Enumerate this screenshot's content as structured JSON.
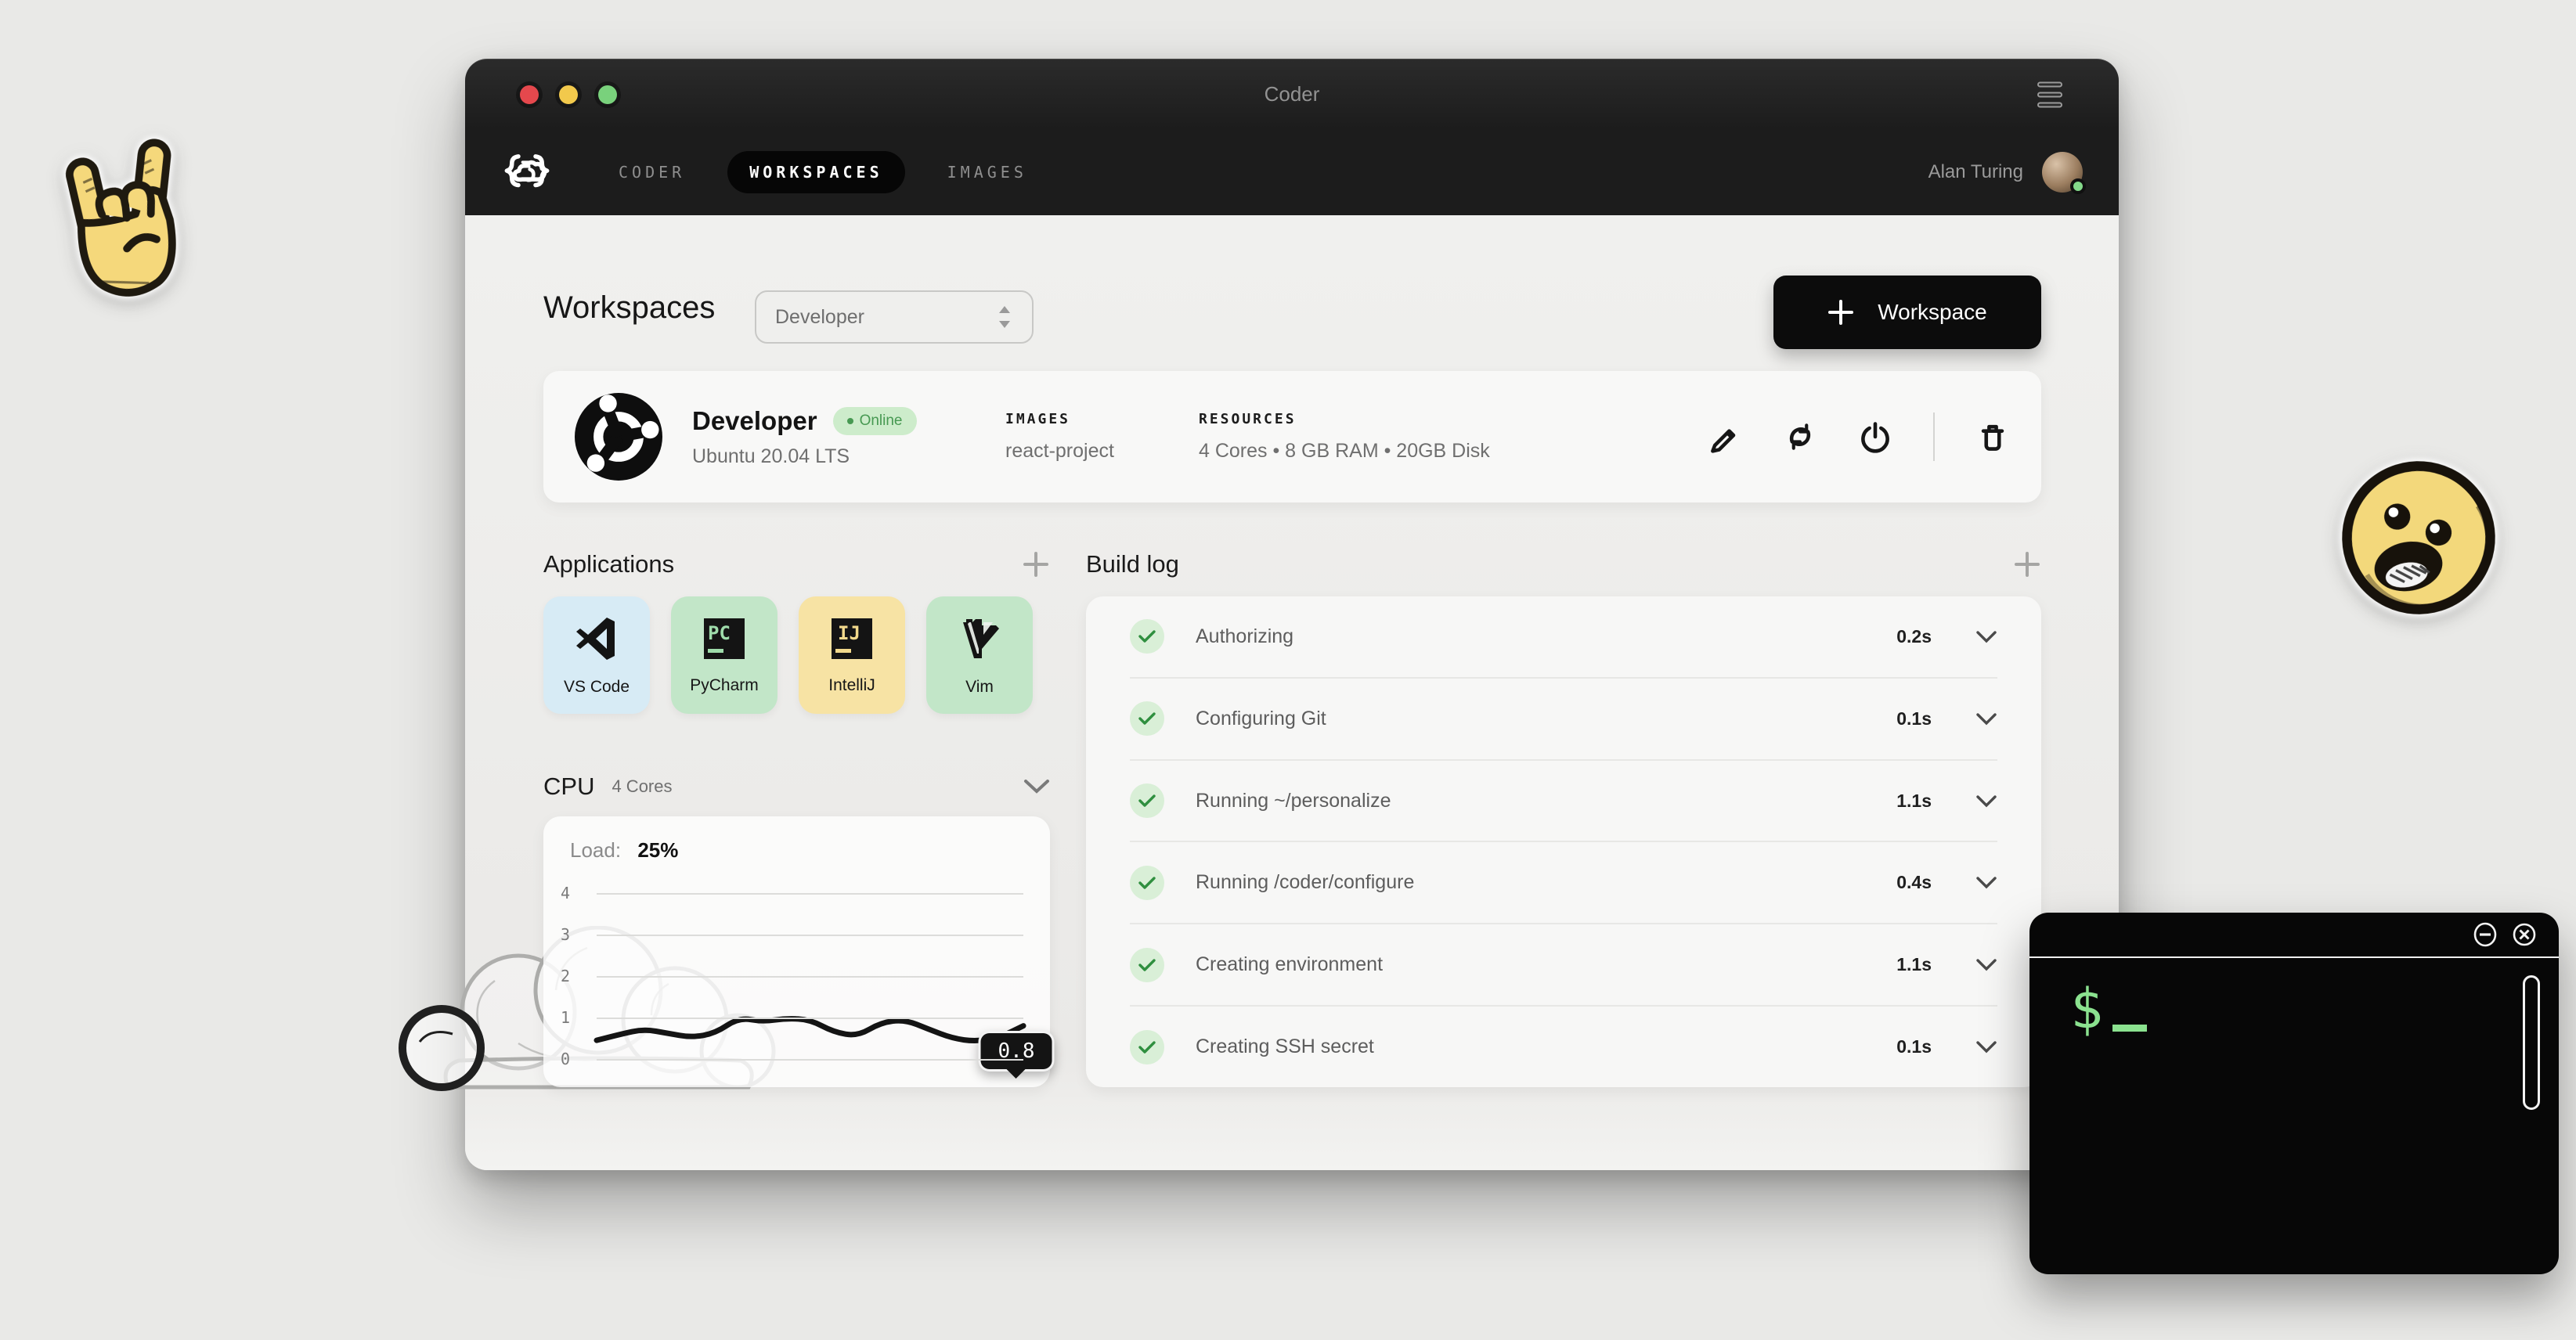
{
  "window": {
    "title": "Coder"
  },
  "nav": {
    "tabs": [
      {
        "label": "CODER",
        "active": false
      },
      {
        "label": "WORKSPACES",
        "active": true
      },
      {
        "label": "IMAGES",
        "active": false
      }
    ],
    "user": {
      "name": "Alan Turing",
      "status_color": "#84d98a"
    }
  },
  "header": {
    "title": "Workspaces",
    "workspace_selector_value": "Developer",
    "new_workspace_label": "Workspace"
  },
  "workspace_card": {
    "name": "Developer",
    "status": "Online",
    "status_bg": "#cdeccb",
    "status_color": "#479952",
    "os": "Ubuntu 20.04 LTS",
    "images_label": "IMAGES",
    "images_value": "react-project",
    "resources_label": "RESOURCES",
    "resources_value": "4 Cores • 8 GB RAM • 20GB Disk",
    "action_icons": [
      "edit-icon",
      "restart-icon",
      "power-icon",
      "delete-icon"
    ]
  },
  "applications": {
    "title": "Applications",
    "apps": [
      {
        "name": "VS Code",
        "icon": "vscode",
        "bg": "#d7ebf5"
      },
      {
        "name": "PyCharm",
        "icon": "pycharm",
        "bg": "#c2e6c8",
        "accent": "#9fdcab"
      },
      {
        "name": "IntelliJ",
        "icon": "intellij",
        "bg": "#f7e3a4",
        "accent": "#f2d98c"
      },
      {
        "name": "Vim",
        "icon": "vim",
        "bg": "#c2e6c8"
      }
    ]
  },
  "cpu": {
    "title": "CPU",
    "subtitle": "4 Cores",
    "load_label": "Load:",
    "load_value": "25%",
    "tooltip_value": "0.8",
    "chart_data": {
      "type": "line",
      "title": "CPU Load",
      "yticks": [
        4,
        3,
        2,
        1,
        0
      ],
      "ylim": [
        0,
        4
      ],
      "grid": true,
      "values": [
        0.45,
        0.6,
        0.72,
        0.62,
        0.52,
        0.62,
        1.0,
        0.9,
        0.98,
        0.95,
        0.65,
        0.55,
        0.88,
        0.95,
        0.72,
        0.5,
        0.42,
        0.52,
        0.8
      ],
      "last_value_label": "0.8",
      "line_color": "#141414"
    }
  },
  "build_log": {
    "title": "Build log",
    "steps": [
      {
        "label": "Authorizing",
        "duration": "0.2s",
        "status": "done"
      },
      {
        "label": "Configuring Git",
        "duration": "0.1s",
        "status": "done"
      },
      {
        "label": "Running ~/personalize",
        "duration": "1.1s",
        "status": "done"
      },
      {
        "label": "Running /coder/configure",
        "duration": "0.4s",
        "status": "done"
      },
      {
        "label": "Creating environment",
        "duration": "1.1s",
        "status": "done"
      },
      {
        "label": "Creating SSH secret",
        "duration": "0.1s",
        "status": "done"
      }
    ]
  },
  "terminal": {
    "prompt": "$"
  },
  "colors": {
    "page_bg": "#e9e9e7",
    "bar_bg": "#1c1c1c",
    "accent_green": "#8be28f",
    "check_green": "#2f8f3f"
  }
}
